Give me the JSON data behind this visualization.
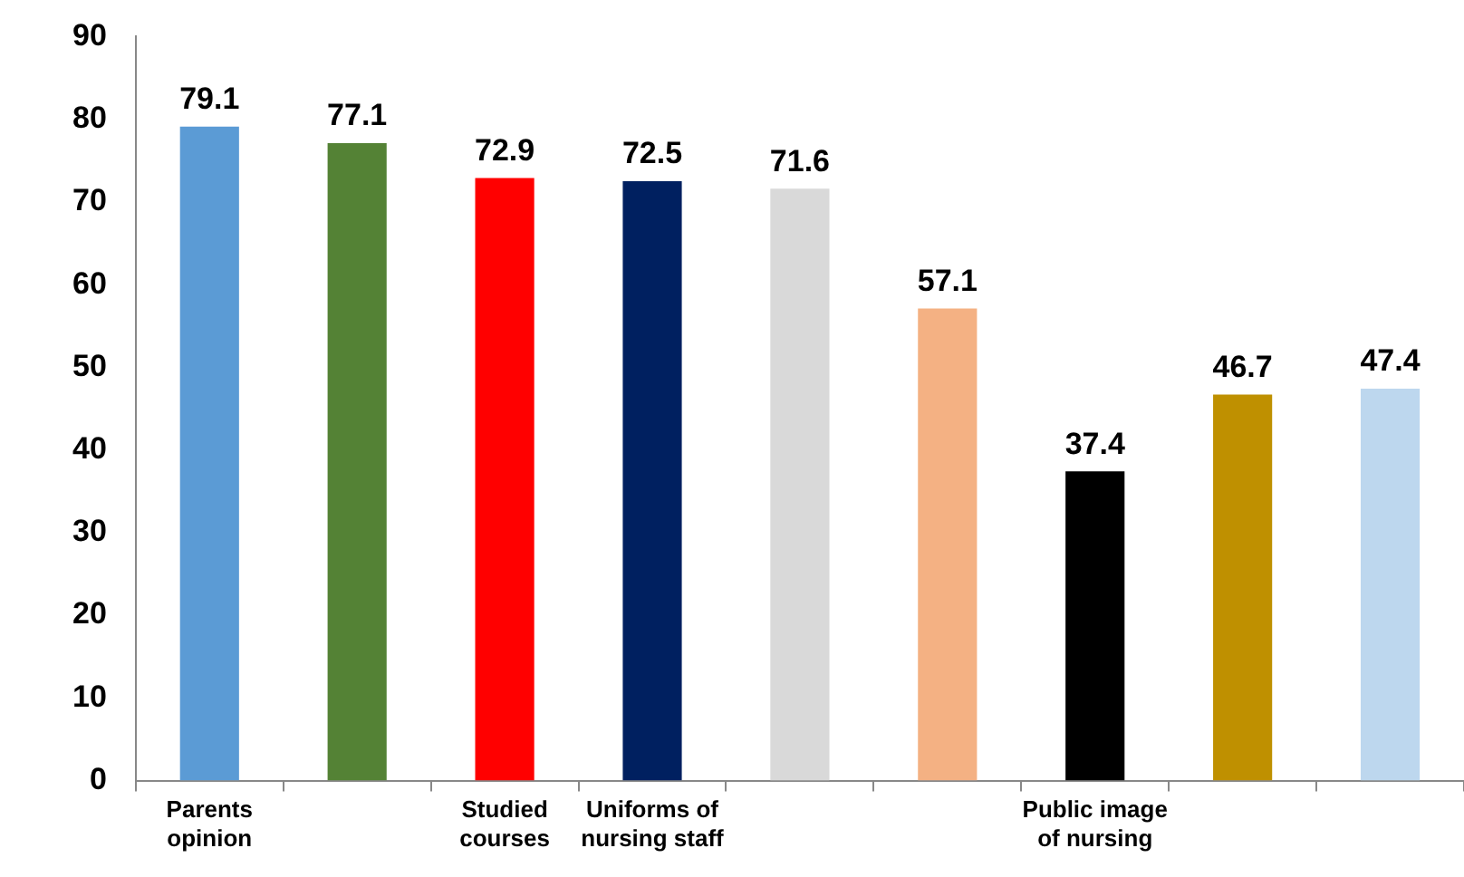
{
  "chart_data": {
    "type": "bar",
    "categories": [
      "Parents opinion",
      null,
      "Studied courses",
      "Uniforms of nursing staff",
      null,
      null,
      "Public image of nursing",
      null,
      null
    ],
    "values": [
      79.1,
      77.1,
      72.9,
      72.5,
      71.6,
      57.1,
      37.4,
      46.7,
      47.4
    ],
    "colors": [
      "#5b9bd5",
      "#548235",
      "#ff0000",
      "#002060",
      "#d9d9d9",
      "#f4b183",
      "#000000",
      "#bf9000",
      "#bdd7ee"
    ],
    "ylim": [
      0,
      90
    ],
    "yticks": [
      0,
      10,
      20,
      30,
      40,
      50,
      60,
      70,
      80,
      90
    ],
    "grid": false,
    "legend": false,
    "data_labels": true
  }
}
